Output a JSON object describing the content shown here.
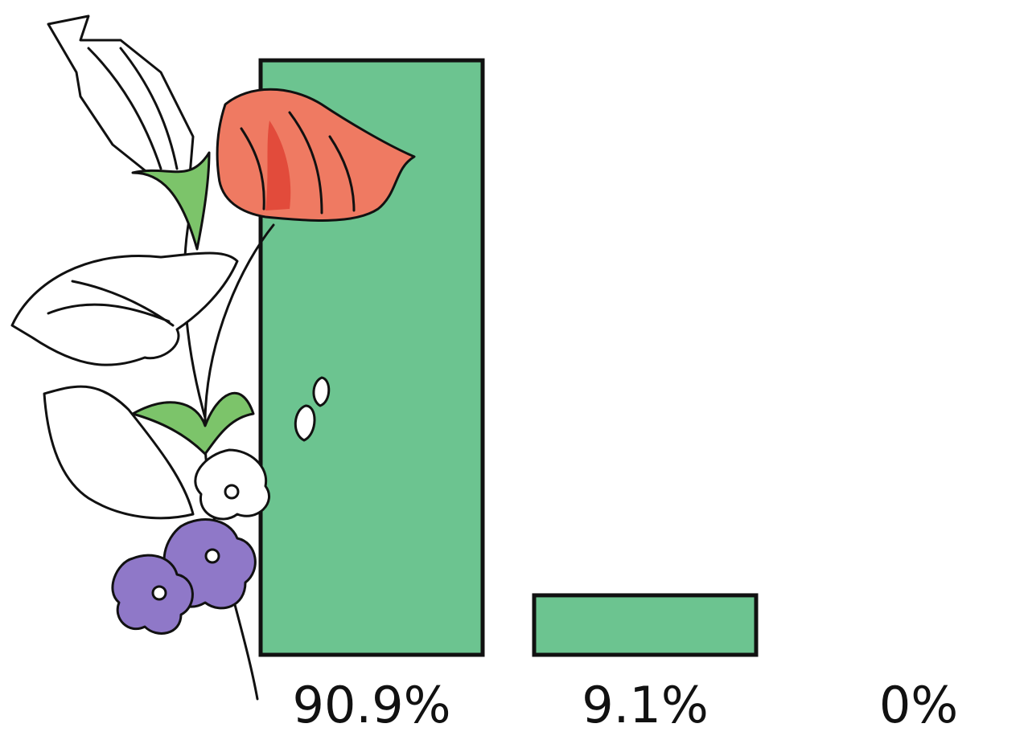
{
  "chart_data": {
    "type": "bar",
    "categories": [
      null,
      null,
      null
    ],
    "values": [
      90.9,
      9.1,
      0
    ],
    "value_labels": [
      "90.9%",
      "9.1%",
      "0%"
    ],
    "color": "#6cc490",
    "ylim": [
      0,
      100
    ]
  }
}
